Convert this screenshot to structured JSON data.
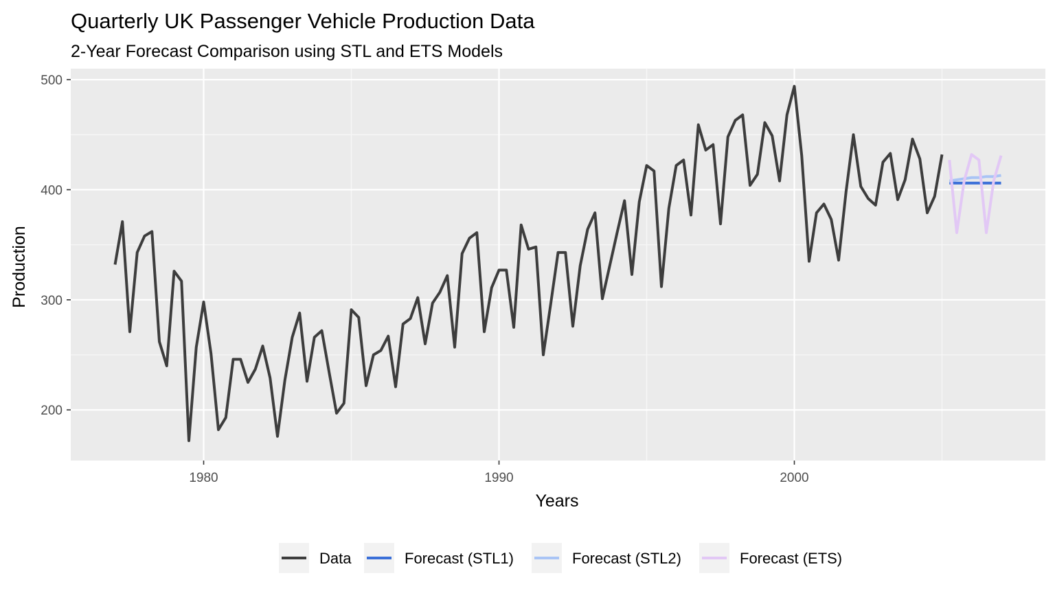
{
  "chart_data": {
    "type": "line",
    "title": "Quarterly UK Passenger Vehicle Production Data",
    "subtitle": "2-Year Forecast Comparison using STL and ETS Models",
    "xlabel": "Years",
    "ylabel": "Production",
    "xlim": [
      1975.5,
      2008.5
    ],
    "ylim": [
      154,
      510
    ],
    "x_ticks": [
      1980,
      1990,
      2000
    ],
    "x_tick_labels": [
      "1980",
      "1990",
      "2000"
    ],
    "y_ticks": [
      200,
      300,
      400,
      500
    ],
    "y_tick_labels": [
      "200",
      "300",
      "400",
      "500"
    ],
    "grid": true,
    "legend_position": "bottom",
    "background": "#ebebeb",
    "series": [
      {
        "name": "Data",
        "color": "#3d3d3d",
        "start": 1977.0,
        "step": 0.25,
        "values": [
          332,
          371,
          271,
          343,
          358,
          362,
          262,
          240,
          326,
          317,
          172,
          257,
          298,
          251,
          182,
          193,
          246,
          246,
          225,
          237,
          258,
          229,
          176,
          227,
          266,
          288,
          226,
          266,
          272,
          234,
          197,
          206,
          291,
          284,
          222,
          250,
          254,
          267,
          221,
          278,
          283,
          302,
          260,
          297,
          307,
          322,
          257,
          342,
          356,
          361,
          271,
          311,
          327,
          327,
          275,
          368,
          346,
          348,
          250,
          296,
          343,
          343,
          276,
          331,
          364,
          379,
          301,
          331,
          361,
          390,
          323,
          389,
          422,
          417,
          312,
          383,
          422,
          427,
          377,
          459,
          436,
          441,
          369,
          448,
          463,
          468,
          404,
          414,
          461,
          449,
          408,
          468,
          494,
          431,
          335,
          379,
          387,
          373,
          336,
          398,
          450,
          403,
          392,
          386,
          425,
          433,
          391,
          409,
          446,
          428,
          379,
          394,
          432
        ]
      },
      {
        "name": "Forecast (STL1)",
        "color": "#3a6fd8",
        "start": 2005.25,
        "step": 0.25,
        "values": [
          406,
          406,
          406,
          406,
          406,
          406,
          406,
          406
        ]
      },
      {
        "name": "Forecast (STL2)",
        "color": "#a9c4f5",
        "start": 2005.25,
        "step": 0.25,
        "values": [
          408,
          409,
          410,
          411,
          411,
          412,
          412,
          413
        ]
      },
      {
        "name": "Forecast (ETS)",
        "color": "#e2c8f5",
        "start": 2005.25,
        "step": 0.25,
        "values": [
          427,
          361,
          408,
          432,
          427,
          361,
          408,
          431
        ]
      }
    ]
  }
}
